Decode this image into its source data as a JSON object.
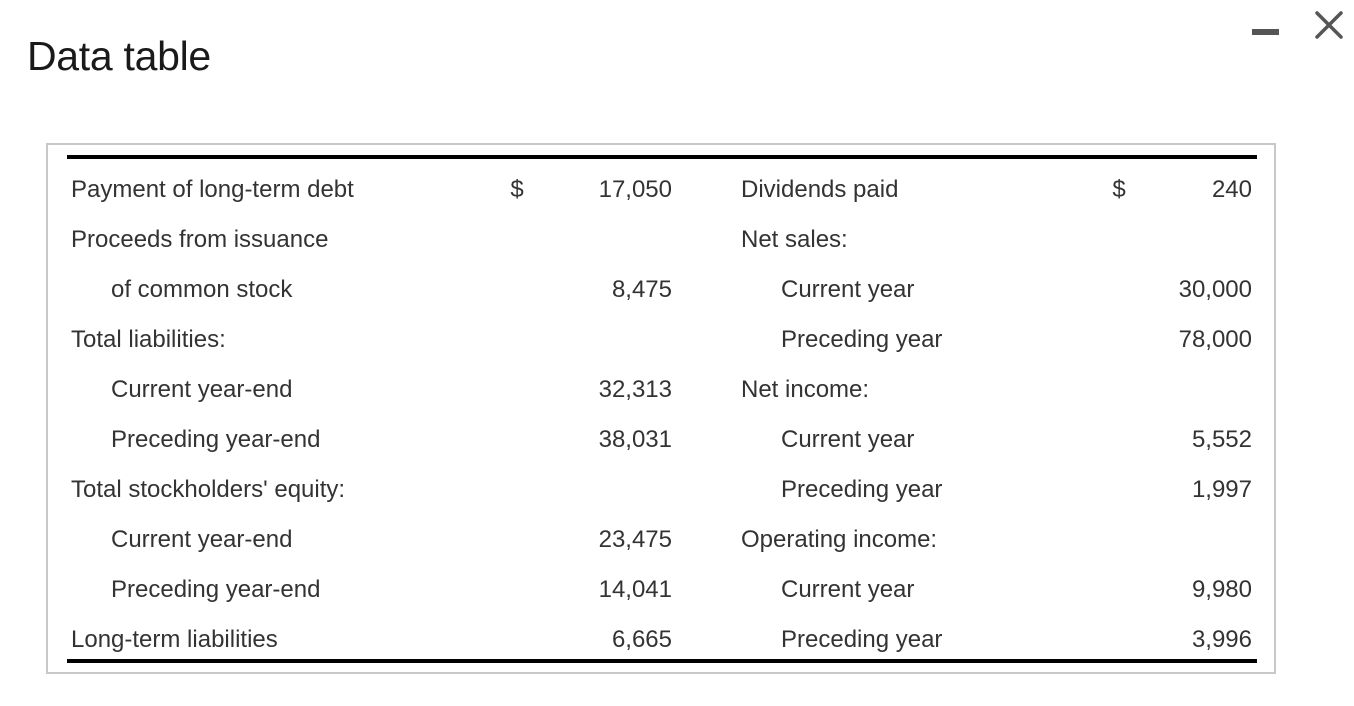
{
  "window": {
    "title": "Data table",
    "minimize_icon": "minimize-icon",
    "close_icon": "close-icon"
  },
  "table": {
    "left": [
      {
        "label": "Payment of long-term debt",
        "indent": false,
        "currency": "$",
        "value": "17,050"
      },
      {
        "label": "Proceeds from issuance",
        "indent": false,
        "currency": "",
        "value": ""
      },
      {
        "label": "of common stock",
        "indent": true,
        "currency": "",
        "value": "8,475"
      },
      {
        "label": "Total liabilities:",
        "indent": false,
        "currency": "",
        "value": ""
      },
      {
        "label": "Current year-end",
        "indent": true,
        "currency": "",
        "value": "32,313"
      },
      {
        "label": "Preceding year-end",
        "indent": true,
        "currency": "",
        "value": "38,031"
      },
      {
        "label": "Total stockholders' equity:",
        "indent": false,
        "currency": "",
        "value": ""
      },
      {
        "label": "Current year-end",
        "indent": true,
        "currency": "",
        "value": "23,475"
      },
      {
        "label": "Preceding year-end",
        "indent": true,
        "currency": "",
        "value": "14,041"
      },
      {
        "label": "Long-term liabilities",
        "indent": false,
        "currency": "",
        "value": "6,665"
      }
    ],
    "right": [
      {
        "label": "Dividends paid",
        "indent": false,
        "currency": "$",
        "value": "240"
      },
      {
        "label": "Net sales:",
        "indent": false,
        "currency": "",
        "value": ""
      },
      {
        "label": "Current year",
        "indent": true,
        "currency": "",
        "value": "30,000"
      },
      {
        "label": "Preceding year",
        "indent": true,
        "currency": "",
        "value": "78,000"
      },
      {
        "label": "Net income:",
        "indent": false,
        "currency": "",
        "value": ""
      },
      {
        "label": "Current year",
        "indent": true,
        "currency": "",
        "value": "5,552"
      },
      {
        "label": "Preceding year",
        "indent": true,
        "currency": "",
        "value": "1,997"
      },
      {
        "label": "Operating income:",
        "indent": false,
        "currency": "",
        "value": ""
      },
      {
        "label": "Current year",
        "indent": true,
        "currency": "",
        "value": "9,980"
      },
      {
        "label": "Preceding year",
        "indent": true,
        "currency": "",
        "value": "3,996"
      }
    ]
  }
}
